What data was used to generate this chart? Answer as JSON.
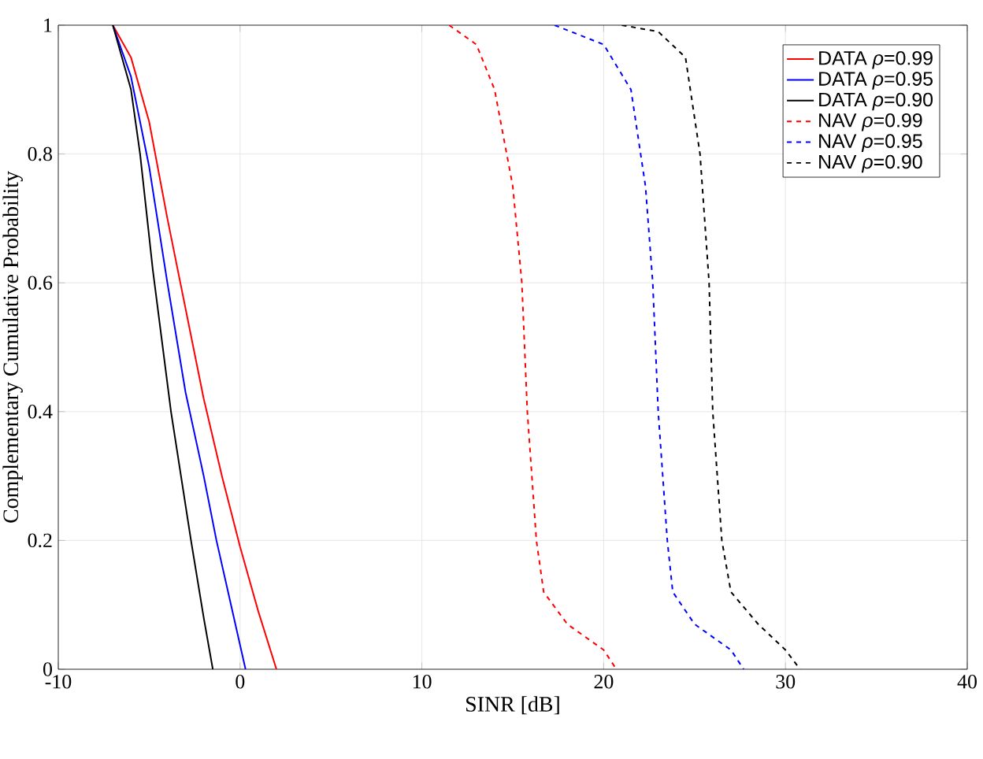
{
  "chart_data": {
    "type": "line",
    "xlabel": "SINR [dB]",
    "ylabel": "Complementary Cumulative Probability",
    "xlim": [
      -10,
      40
    ],
    "ylim": [
      0,
      1
    ],
    "xticks": [
      -10,
      0,
      10,
      20,
      30,
      40
    ],
    "yticks": [
      0,
      0.2,
      0.4,
      0.6,
      0.8,
      1
    ],
    "grid": true,
    "legend": "top right",
    "series": [
      {
        "name": "DATA *ρ*=0.99",
        "color": "#ff0000",
        "line_style": "solid",
        "x": [
          -7,
          -6,
          -5,
          -4,
          -3,
          -2,
          -1,
          0,
          1,
          2
        ],
        "values": [
          1,
          0.95,
          0.85,
          0.7,
          0.56,
          0.42,
          0.3,
          0.19,
          0.09,
          0
        ]
      },
      {
        "name": "DATA *ρ*=0.95",
        "color": "#0000ff",
        "line_style": "solid",
        "x": [
          -7,
          -6,
          -5,
          -4,
          -3,
          -2,
          -1.3,
          -0.5,
          0.3
        ],
        "values": [
          1,
          0.92,
          0.78,
          0.6,
          0.43,
          0.3,
          0.2,
          0.1,
          0
        ]
      },
      {
        "name": "DATA *ρ*=0.90",
        "color": "#000000",
        "line_style": "solid",
        "x": [
          -7,
          -6,
          -5.5,
          -4.8,
          -3.8,
          -2.7,
          -2,
          -1.5
        ],
        "values": [
          1,
          0.9,
          0.8,
          0.62,
          0.4,
          0.2,
          0.08,
          0
        ]
      },
      {
        "name": "NAV *ρ*=0.99",
        "color": "#ff0000",
        "line_style": "dashed",
        "x": [
          11.5,
          13,
          14,
          15,
          15.5,
          15.8,
          16.3,
          16.7,
          18,
          20,
          20.7
        ],
        "values": [
          1,
          0.97,
          0.9,
          0.75,
          0.6,
          0.4,
          0.2,
          0.12,
          0.07,
          0.03,
          0
        ]
      },
      {
        "name": "NAV *ρ*=0.95",
        "color": "#0000ff",
        "line_style": "dashed",
        "x": [
          17.3,
          20,
          21.5,
          22.3,
          22.7,
          23,
          23.5,
          23.8,
          25,
          27,
          27.7
        ],
        "values": [
          1,
          0.97,
          0.9,
          0.75,
          0.6,
          0.4,
          0.2,
          0.12,
          0.07,
          0.03,
          0
        ]
      },
      {
        "name": "NAV *ρ*=0.90",
        "color": "#000000",
        "line_style": "dashed",
        "x": [
          21,
          23,
          24.5,
          25.3,
          25.8,
          26,
          26.5,
          27,
          28.5,
          30,
          30.8
        ],
        "values": [
          1,
          0.99,
          0.95,
          0.8,
          0.6,
          0.4,
          0.2,
          0.12,
          0.07,
          0.03,
          0
        ]
      }
    ]
  }
}
